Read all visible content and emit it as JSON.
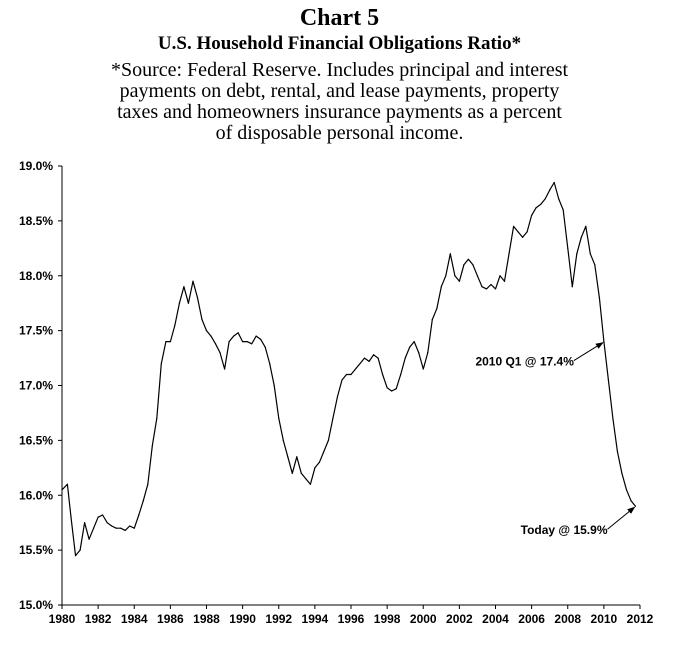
{
  "chart_data": {
    "type": "line",
    "title": "Chart 5",
    "subtitle": "U.S. Household Financial Obligations Ratio*",
    "note_lines": [
      "*Source: Federal Reserve. Includes principal and interest",
      "payments on debt, rental, and lease payments, property",
      "taxes and homeowners insurance payments as a percent",
      "of disposable personal income."
    ],
    "xlabel": "",
    "ylabel": "",
    "xlim": [
      1980,
      2012
    ],
    "ylim": [
      15.0,
      19.0
    ],
    "grid": false,
    "x_ticks": [
      1980,
      1982,
      1984,
      1986,
      1988,
      1990,
      1992,
      1994,
      1996,
      1998,
      2000,
      2002,
      2004,
      2006,
      2008,
      2010,
      2012
    ],
    "x_tick_labels": [
      "1980",
      "1982",
      "1984",
      "1986",
      "1988",
      "1990",
      "1992",
      "1994",
      "1996",
      "1998",
      "2000",
      "2002",
      "2004",
      "2006",
      "2008",
      "2010",
      "2012"
    ],
    "y_ticks": [
      15.0,
      15.5,
      16.0,
      16.5,
      17.0,
      17.5,
      18.0,
      18.5,
      19.0
    ],
    "y_tick_labels": [
      "15.0%",
      "15.5%",
      "16.0%",
      "16.5%",
      "17.0%",
      "17.5%",
      "18.0%",
      "18.5%",
      "19.0%"
    ],
    "series": [
      {
        "name": "Household Financial Obligations Ratio",
        "color": "#000000",
        "x": [
          1980.0,
          1980.3,
          1980.5,
          1980.75,
          1981.0,
          1981.25,
          1981.5,
          1981.75,
          1982.0,
          1982.25,
          1982.5,
          1982.75,
          1983.0,
          1983.25,
          1983.5,
          1983.75,
          1984.0,
          1984.25,
          1984.5,
          1984.75,
          1985.0,
          1985.25,
          1985.5,
          1985.75,
          1986.0,
          1986.25,
          1986.5,
          1986.75,
          1987.0,
          1987.25,
          1987.5,
          1987.75,
          1988.0,
          1988.25,
          1988.5,
          1988.75,
          1989.0,
          1989.25,
          1989.5,
          1989.75,
          1990.0,
          1990.25,
          1990.5,
          1990.75,
          1991.0,
          1991.25,
          1991.5,
          1991.75,
          1992.0,
          1992.25,
          1992.5,
          1992.75,
          1993.0,
          1993.25,
          1993.5,
          1993.75,
          1994.0,
          1994.25,
          1994.5,
          1994.75,
          1995.0,
          1995.25,
          1995.5,
          1995.75,
          1996.0,
          1996.25,
          1996.5,
          1996.75,
          1997.0,
          1997.25,
          1997.5,
          1997.75,
          1998.0,
          1998.25,
          1998.5,
          1998.75,
          1999.0,
          1999.25,
          1999.5,
          1999.75,
          2000.0,
          2000.25,
          2000.5,
          2000.75,
          2001.0,
          2001.25,
          2001.5,
          2001.75,
          2002.0,
          2002.25,
          2002.5,
          2002.75,
          2003.0,
          2003.25,
          2003.5,
          2003.75,
          2004.0,
          2004.25,
          2004.5,
          2004.75,
          2005.0,
          2005.25,
          2005.5,
          2005.75,
          2006.0,
          2006.25,
          2006.5,
          2006.75,
          2007.0,
          2007.25,
          2007.5,
          2007.75,
          2008.0,
          2008.25,
          2008.5,
          2008.75,
          2009.0,
          2009.25,
          2009.5,
          2009.75,
          2010.0,
          2010.25,
          2010.5,
          2010.75,
          2011.0,
          2011.25,
          2011.5,
          2011.75
        ],
        "values": [
          16.05,
          16.1,
          15.8,
          15.45,
          15.5,
          15.75,
          15.6,
          15.7,
          15.8,
          15.82,
          15.75,
          15.72,
          15.7,
          15.7,
          15.68,
          15.72,
          15.7,
          15.82,
          15.95,
          16.1,
          16.45,
          16.7,
          17.2,
          17.4,
          17.4,
          17.55,
          17.75,
          17.9,
          17.75,
          17.95,
          17.8,
          17.6,
          17.5,
          17.45,
          17.38,
          17.3,
          17.15,
          17.4,
          17.45,
          17.48,
          17.4,
          17.4,
          17.38,
          17.45,
          17.42,
          17.35,
          17.2,
          17.0,
          16.7,
          16.5,
          16.35,
          16.2,
          16.35,
          16.2,
          16.15,
          16.1,
          16.25,
          16.3,
          16.4,
          16.5,
          16.7,
          16.9,
          17.05,
          17.1,
          17.1,
          17.15,
          17.2,
          17.25,
          17.22,
          17.28,
          17.25,
          17.1,
          16.98,
          16.95,
          16.97,
          17.1,
          17.25,
          17.35,
          17.4,
          17.3,
          17.15,
          17.3,
          17.6,
          17.7,
          17.9,
          18.0,
          18.2,
          18.0,
          17.95,
          18.1,
          18.15,
          18.1,
          18.0,
          17.9,
          17.88,
          17.92,
          17.88,
          18.0,
          17.95,
          18.2,
          18.45,
          18.4,
          18.35,
          18.4,
          18.55,
          18.62,
          18.65,
          18.7,
          18.78,
          18.85,
          18.7,
          18.6,
          18.25,
          17.9,
          18.2,
          18.35,
          18.45,
          18.2,
          18.1,
          17.8,
          17.4,
          17.05,
          16.7,
          16.4,
          16.2,
          16.05,
          15.95,
          15.9
        ]
      }
    ],
    "annotations": [
      {
        "text": "2010 Q1 @ 17.4%",
        "x": 2010.0,
        "y": 17.4
      },
      {
        "text": "Today @ 15.9%",
        "x": 2011.75,
        "y": 15.9
      }
    ]
  }
}
